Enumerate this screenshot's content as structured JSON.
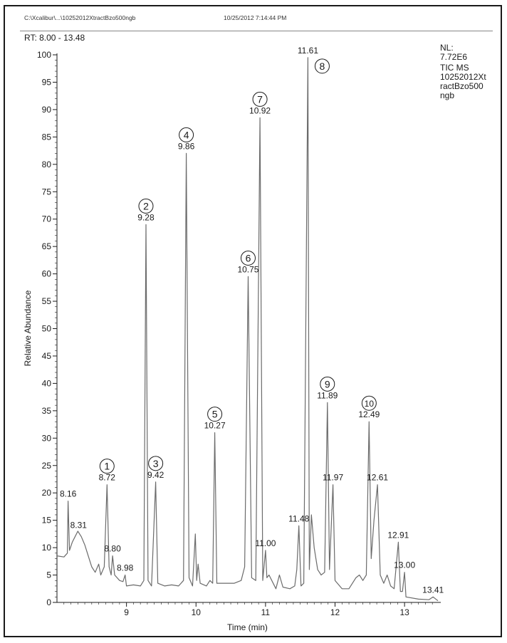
{
  "header": {
    "file_path": "C:\\Xcalibur\\...\\10252012XtractBzo500ngb",
    "datetime": "10/25/2012 7:14:44 PM",
    "rt_range": "RT: 8.00 - 13.48"
  },
  "info_box": {
    "lines": [
      "NL:",
      "7.72E6",
      "TIC  MS",
      "10252012Xt",
      "ractBzo500",
      "ngb"
    ]
  },
  "colors": {
    "trace": "#6b6b6b",
    "axis": "#1a1a1a",
    "text": "#1a1a1a"
  },
  "chart_data": {
    "type": "line",
    "title": "",
    "xlabel": "Time (min)",
    "ylabel": "Relative Abundance",
    "xlim": [
      8.0,
      13.48
    ],
    "ylim": [
      0,
      100
    ],
    "x_ticks": [
      9,
      10,
      11,
      12,
      13
    ],
    "y_ticks": [
      0,
      5,
      10,
      15,
      20,
      25,
      30,
      35,
      40,
      45,
      50,
      55,
      60,
      65,
      70,
      75,
      80,
      85,
      90,
      95,
      100
    ],
    "grid": false,
    "baseline": [
      [
        8.0,
        8.5
      ],
      [
        8.1,
        8.3
      ],
      [
        8.15,
        9.0
      ],
      [
        8.16,
        18.5
      ],
      [
        8.18,
        9.5
      ],
      [
        8.22,
        11.0
      ],
      [
        8.26,
        12.0
      ],
      [
        8.3,
        13.0
      ],
      [
        8.31,
        12.8
      ],
      [
        8.35,
        12.0
      ],
      [
        8.4,
        10.5
      ],
      [
        8.45,
        8.5
      ],
      [
        8.5,
        6.5
      ],
      [
        8.55,
        5.5
      ],
      [
        8.6,
        7.0
      ],
      [
        8.63,
        5.0
      ],
      [
        8.68,
        6.5
      ],
      [
        8.72,
        21.5
      ],
      [
        8.75,
        6.5
      ],
      [
        8.78,
        5.0
      ],
      [
        8.8,
        8.5
      ],
      [
        8.83,
        5.0
      ],
      [
        8.9,
        4.0
      ],
      [
        8.95,
        3.8
      ],
      [
        8.98,
        5.0
      ],
      [
        9.0,
        3.0
      ],
      [
        9.1,
        3.2
      ],
      [
        9.2,
        3.0
      ],
      [
        9.25,
        4.0
      ],
      [
        9.28,
        69.0
      ],
      [
        9.31,
        4.0
      ],
      [
        9.36,
        3.0
      ],
      [
        9.42,
        22.0
      ],
      [
        9.45,
        3.5
      ],
      [
        9.55,
        3.0
      ],
      [
        9.65,
        3.2
      ],
      [
        9.75,
        3.0
      ],
      [
        9.82,
        4.0
      ],
      [
        9.86,
        82.0
      ],
      [
        9.9,
        4.5
      ],
      [
        9.95,
        3.0
      ],
      [
        9.99,
        12.5
      ],
      [
        10.01,
        4.0
      ],
      [
        10.03,
        7.0
      ],
      [
        10.06,
        3.5
      ],
      [
        10.15,
        3.0
      ],
      [
        10.2,
        4.0
      ],
      [
        10.24,
        3.5
      ],
      [
        10.27,
        31.0
      ],
      [
        10.3,
        3.5
      ],
      [
        10.4,
        3.5
      ],
      [
        10.55,
        3.5
      ],
      [
        10.65,
        4.0
      ],
      [
        10.7,
        6.5
      ],
      [
        10.75,
        59.5
      ],
      [
        10.8,
        4.5
      ],
      [
        10.86,
        4.0
      ],
      [
        10.92,
        88.5
      ],
      [
        10.96,
        4.0
      ],
      [
        11.0,
        9.5
      ],
      [
        11.02,
        4.5
      ],
      [
        11.05,
        5.0
      ],
      [
        11.15,
        2.5
      ],
      [
        11.2,
        5.0
      ],
      [
        11.25,
        2.8
      ],
      [
        11.35,
        2.5
      ],
      [
        11.42,
        3.0
      ],
      [
        11.45,
        6.0
      ],
      [
        11.48,
        14.0
      ],
      [
        11.51,
        3.0
      ],
      [
        11.55,
        3.5
      ],
      [
        11.61,
        99.5
      ],
      [
        11.63,
        6.0
      ],
      [
        11.66,
        16.0
      ],
      [
        11.7,
        10.0
      ],
      [
        11.75,
        6.0
      ],
      [
        11.8,
        5.0
      ],
      [
        11.85,
        5.5
      ],
      [
        11.89,
        36.5
      ],
      [
        11.92,
        6.0
      ],
      [
        11.97,
        21.5
      ],
      [
        12.0,
        4.0
      ],
      [
        12.1,
        2.5
      ],
      [
        12.2,
        2.5
      ],
      [
        12.3,
        4.5
      ],
      [
        12.35,
        5.0
      ],
      [
        12.4,
        4.0
      ],
      [
        12.45,
        5.0
      ],
      [
        12.49,
        33.0
      ],
      [
        12.52,
        8.0
      ],
      [
        12.56,
        15.0
      ],
      [
        12.61,
        21.5
      ],
      [
        12.65,
        5.0
      ],
      [
        12.7,
        3.5
      ],
      [
        12.75,
        5.0
      ],
      [
        12.8,
        3.0
      ],
      [
        12.85,
        2.5
      ],
      [
        12.91,
        11.0
      ],
      [
        12.94,
        2.0
      ],
      [
        12.97,
        2.0
      ],
      [
        13.0,
        5.5
      ],
      [
        13.02,
        1.0
      ],
      [
        13.2,
        0.6
      ],
      [
        13.35,
        0.5
      ],
      [
        13.41,
        1.0
      ],
      [
        13.48,
        0.3
      ]
    ],
    "peak_labels": [
      {
        "x": 8.16,
        "y": 18.5,
        "label": "8.16"
      },
      {
        "x": 8.31,
        "y": 12.8,
        "label": "8.31"
      },
      {
        "x": 8.72,
        "y": 21.5,
        "label": "8.72",
        "number": "1"
      },
      {
        "x": 8.8,
        "y": 8.5,
        "label": "8.80"
      },
      {
        "x": 8.98,
        "y": 5.0,
        "label": "8.98"
      },
      {
        "x": 9.28,
        "y": 69.0,
        "label": "9.28",
        "number": "2"
      },
      {
        "x": 9.42,
        "y": 22.0,
        "label": "9.42",
        "number": "3"
      },
      {
        "x": 9.86,
        "y": 82.0,
        "label": "9.86",
        "number": "4"
      },
      {
        "x": 10.27,
        "y": 31.0,
        "label": "10.27",
        "number": "5"
      },
      {
        "x": 10.75,
        "y": 59.5,
        "label": "10.75",
        "number": "6"
      },
      {
        "x": 10.92,
        "y": 88.5,
        "label": "10.92",
        "number": "7"
      },
      {
        "x": 11.0,
        "y": 9.5,
        "label": "11.00"
      },
      {
        "x": 11.48,
        "y": 14.0,
        "label": "11.48"
      },
      {
        "x": 11.61,
        "y": 99.5,
        "label": "11.61",
        "number": "8"
      },
      {
        "x": 11.89,
        "y": 36.5,
        "label": "11.89",
        "number": "9"
      },
      {
        "x": 11.97,
        "y": 21.5,
        "label": "11.97"
      },
      {
        "x": 12.49,
        "y": 33.0,
        "label": "12.49",
        "number": "10"
      },
      {
        "x": 12.61,
        "y": 21.5,
        "label": "12.61"
      },
      {
        "x": 12.91,
        "y": 11.0,
        "label": "12.91"
      },
      {
        "x": 13.0,
        "y": 5.5,
        "label": "13.00"
      },
      {
        "x": 13.41,
        "y": 1.0,
        "label": "13.41"
      }
    ]
  }
}
